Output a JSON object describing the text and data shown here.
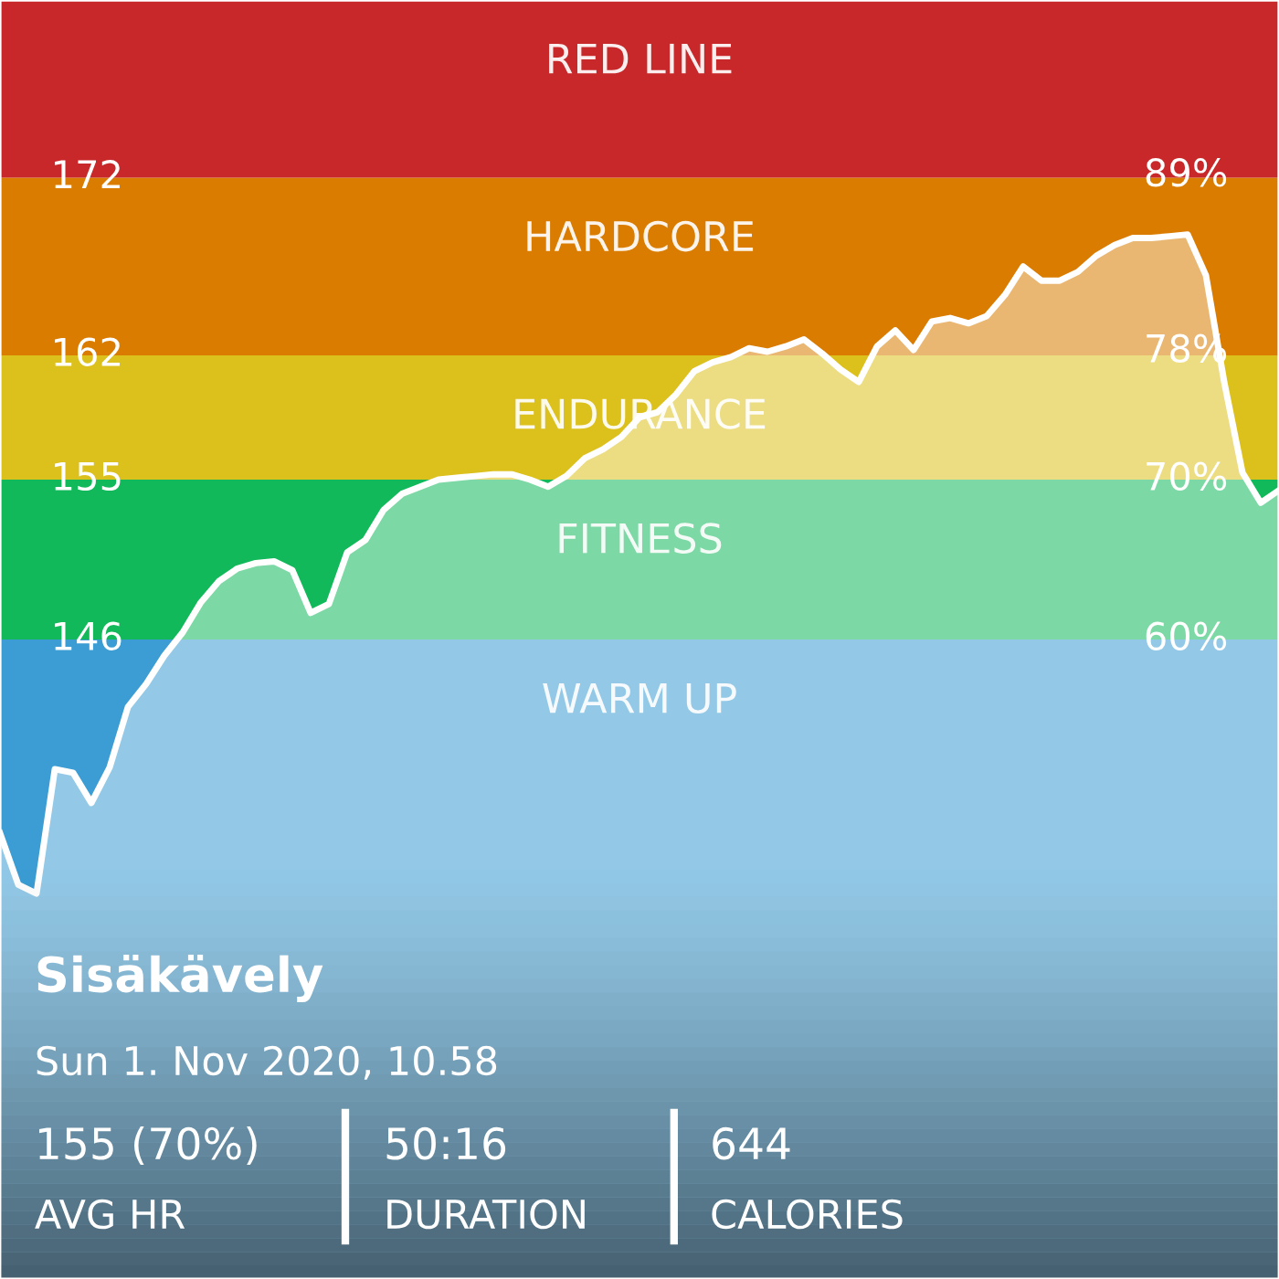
{
  "chart_data": {
    "type": "area",
    "title": "Sisäkävely",
    "subtitle": "Sun 1. Nov 2020, 10.58",
    "annotations": [
      "155 (70%)",
      "AVG HR",
      "50:16",
      "DURATION",
      "644",
      "CALORIES"
    ],
    "categories": [
      null,
      null,
      null,
      null,
      null,
      null,
      null,
      null,
      null,
      null,
      null,
      null,
      null,
      null,
      null,
      null,
      null,
      null,
      null,
      null,
      null,
      null,
      null,
      null,
      null,
      null,
      null,
      null,
      null,
      null,
      null,
      null,
      null,
      null,
      null,
      null,
      null,
      null,
      null,
      null,
      null,
      null,
      null,
      null,
      null,
      null,
      null,
      null,
      null,
      null,
      null,
      null,
      null,
      null,
      null,
      null,
      null,
      null,
      null,
      null,
      null,
      null,
      null,
      null,
      null,
      null,
      null,
      null,
      null,
      null,
      null
    ],
    "series": [
      {
        "color": "#ffffff",
        "values": [
          135.1,
          132.2,
          131.7,
          138.7,
          138.5,
          136.8,
          138.8,
          142.2,
          143.5,
          145.1,
          146.4,
          148.1,
          149.3,
          150.0,
          150.3,
          150.4,
          149.9,
          147.5,
          148.0,
          150.9,
          151.6,
          153.3,
          154.2,
          154.6,
          155.0,
          155.1,
          155.2,
          155.3,
          155.3,
          155.0,
          154.6,
          155.2,
          156.2,
          156.7,
          157.4,
          158.5,
          158.8,
          159.8,
          161.1,
          161.6,
          161.9,
          162.4,
          162.2,
          162.5,
          162.9,
          162.1,
          161.2,
          160.5,
          162.5,
          163.4,
          162.3,
          163.9,
          164.1,
          163.8,
          164.2,
          165.4,
          167.0,
          166.2,
          166.2,
          166.7,
          167.6,
          168.2,
          168.6,
          168.6,
          168.7,
          168.8,
          166.5,
          160.5,
          155.4,
          153.7,
          154.4
        ]
      }
    ],
    "ylim": [
      110,
      182
    ],
    "yticks": [
      172,
      162,
      155,
      146
    ],
    "y2lim": [
      20,
      100
    ],
    "y2ticks": [
      {
        "value": 89,
        "label": "89%"
      },
      {
        "value": 78,
        "label": "78%"
      },
      {
        "value": 70,
        "label": "70%"
      },
      {
        "value": 60,
        "label": "60%"
      }
    ],
    "tick_labels": "y",
    "bands": [
      {
        "axis": "y",
        "from": 110,
        "to": 146,
        "label": "WARM UP",
        "color": "#3b9dd3"
      },
      {
        "axis": "y",
        "from": 146,
        "to": 155,
        "label": "FITNESS",
        "color": "#12b95a"
      },
      {
        "axis": "y",
        "from": 155,
        "to": 162,
        "label": "ENDURANCE",
        "color": "#dcc01c"
      },
      {
        "axis": "y",
        "from": 162,
        "to": 172,
        "label": "HARDCORE",
        "color": "#d97c00"
      },
      {
        "axis": "y",
        "from": 172,
        "to": 182,
        "label": "RED LINE",
        "color": "#c8282a"
      }
    ],
    "grid": false,
    "legend": false
  }
}
